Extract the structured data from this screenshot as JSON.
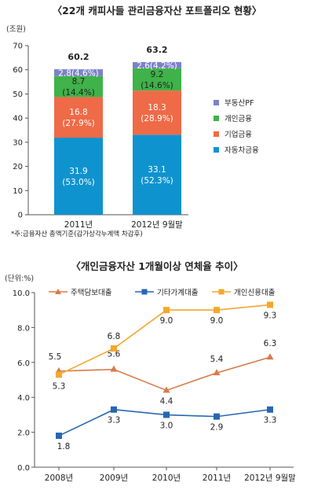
{
  "chart_data": [
    {
      "type": "bar",
      "stacked": true,
      "title": "〈22개 캐피사들 관리금융자산 포트폴리오 현황〉",
      "unit_label": "(조원)",
      "categories": [
        "2011년",
        "2012년 9월말"
      ],
      "totals": [
        "60.2",
        "63.2"
      ],
      "ylim": [
        0,
        70
      ],
      "yticks": [
        "0",
        "10",
        "20",
        "30",
        "40",
        "50",
        "60",
        "70"
      ],
      "series": [
        {
          "name": "자동차금융",
          "color": "#0f93cf",
          "text_color": "#ffffff",
          "values": [
            31.9,
            33.1
          ],
          "labels": [
            "31.9\n(53.0%)",
            "33.1\n(52.3%)"
          ]
        },
        {
          "name": "기업금융",
          "color": "#ef6a47",
          "text_color": "#ffffff",
          "values": [
            16.8,
            18.3
          ],
          "labels": [
            "16.8\n(27.9%)",
            "18.3\n(28.9%)"
          ]
        },
        {
          "name": "개인금융",
          "color": "#3fb249",
          "text_color": "#222222",
          "values": [
            8.7,
            9.2
          ],
          "labels": [
            "8.7\n(14.4%)",
            "9.2\n(14.6%)"
          ]
        },
        {
          "name": "부동산PF",
          "color": "#7b82c8",
          "text_color": "#ffffff",
          "values": [
            2.8,
            2.6
          ],
          "labels": [
            "2.8(4.6%)",
            "2.6(4.2%)"
          ]
        }
      ],
      "legend_order": [
        "부동산PF",
        "개인금융",
        "기업금융",
        "자동차금융"
      ],
      "legend_position": "right",
      "note": "*주:금융자산 총액기준(감가상각누계액 차감후)"
    },
    {
      "type": "line",
      "title": "〈개인금융자산 1개월이상 연체율 추이〉",
      "unit_label": "(단위:%)",
      "categories": [
        "2008년",
        "2009년",
        "2010년",
        "2011년",
        "2012년 9월말"
      ],
      "ylim": [
        0,
        10
      ],
      "yticks": [
        "0.0",
        "2.0",
        "4.0",
        "6.0",
        "8.0",
        "10.0"
      ],
      "grid": false,
      "legend_position": "top",
      "series": [
        {
          "name": "주택담보대출",
          "color": "#d87a4a",
          "marker": "triangle",
          "values": [
            5.5,
            5.6,
            4.4,
            5.4,
            6.3
          ],
          "labels": [
            "5.5",
            "5.6",
            "4.4",
            "5.4",
            "6.3"
          ]
        },
        {
          "name": "기타가계대출",
          "color": "#2767b2",
          "marker": "square",
          "values": [
            1.8,
            3.3,
            3.0,
            2.9,
            3.3
          ],
          "labels": [
            "1.8",
            "3.3",
            "3.0",
            "2.9",
            "3.3"
          ]
        },
        {
          "name": "개인신용대출",
          "color": "#f3a72e",
          "marker": "square",
          "values": [
            5.3,
            6.8,
            9.0,
            9.0,
            9.3
          ],
          "labels": [
            "5.3",
            "6.8",
            "9.0",
            "9.0",
            "9.3"
          ]
        }
      ]
    }
  ]
}
